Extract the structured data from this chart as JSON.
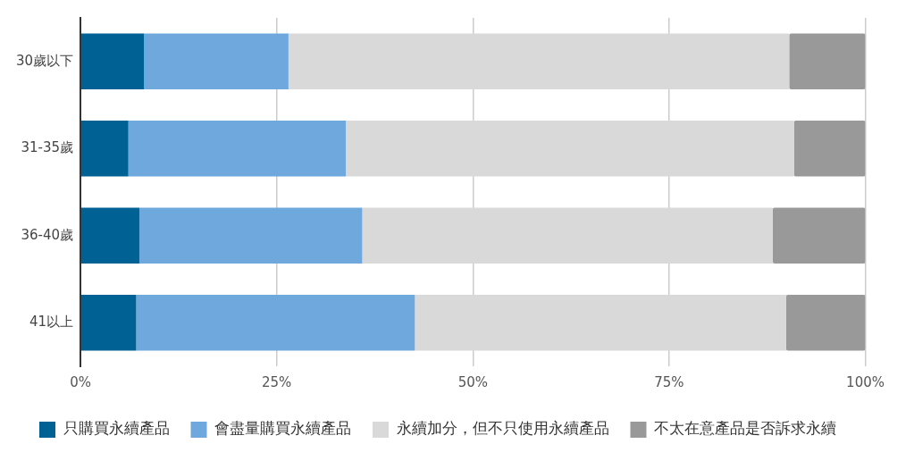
{
  "chart_data": {
    "type": "bar",
    "orientation": "horizontal",
    "stacked": true,
    "categories": [
      "30歲以下",
      "31-35歲",
      "36-40歲",
      "41以上"
    ],
    "series": [
      {
        "name": "只購買永續產品",
        "color": "#006194",
        "values": [
          8.1,
          6.1,
          7.5,
          7.1
        ]
      },
      {
        "name": "會盡量購買永續產品",
        "color": "#6fa8dc",
        "values": [
          18.4,
          27.7,
          28.4,
          35.5
        ]
      },
      {
        "name": "永續加分，但不只使用永續產品",
        "color": "#d9d9d9",
        "values": [
          63.8,
          57.1,
          52.3,
          47.3
        ]
      },
      {
        "name": "不太在意產品是否訴求永續",
        "color": "#999999",
        "values": [
          9.7,
          9.1,
          11.8,
          10.1
        ]
      }
    ],
    "xlim": [
      0,
      100
    ],
    "xticks": [
      {
        "value": 0,
        "label": "0%"
      },
      {
        "value": 25,
        "label": "25%"
      },
      {
        "value": 50,
        "label": "50%"
      },
      {
        "value": 75,
        "label": "75%"
      },
      {
        "value": 100,
        "label": "100%"
      }
    ],
    "grid": "x",
    "legend": "bottom"
  }
}
